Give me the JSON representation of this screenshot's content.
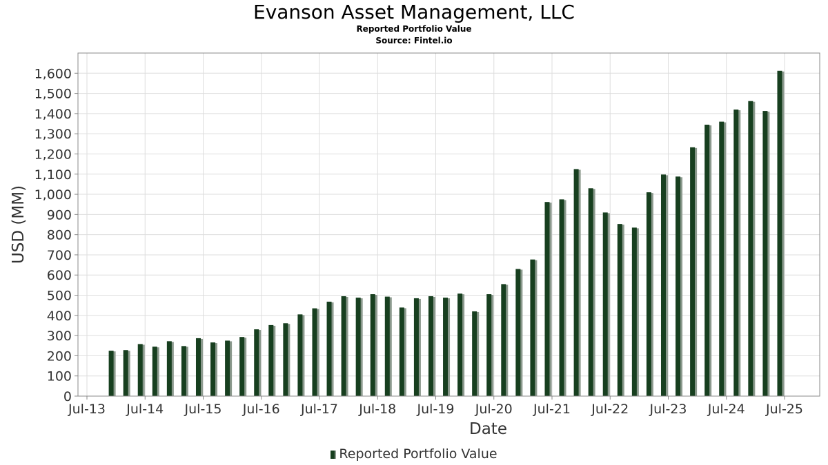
{
  "chart_data": {
    "type": "bar",
    "title": "Evanson Asset Management, LLC",
    "subtitle": "Reported Portfolio Value",
    "source": "Source: Fintel.io",
    "xlabel": "Date",
    "ylabel": "USD (MM)",
    "ylim": [
      0,
      1700
    ],
    "y_ticks": [
      0,
      100,
      200,
      300,
      400,
      500,
      600,
      700,
      800,
      900,
      1000,
      1100,
      1200,
      1300,
      1400,
      1500,
      1600
    ],
    "y_tick_labels": [
      "0",
      "100",
      "200",
      "300",
      "400",
      "500",
      "600",
      "700",
      "800",
      "900",
      "1,000",
      "1,100",
      "1,200",
      "1,300",
      "1,400",
      "1,500",
      "1,600"
    ],
    "x_ticks": [
      "2013-07",
      "2014-07",
      "2015-07",
      "2016-07",
      "2017-07",
      "2018-07",
      "2019-07",
      "2020-07",
      "2021-07",
      "2022-07",
      "2023-07",
      "2024-07",
      "2025-07"
    ],
    "x_tick_labels": [
      "Jul-13",
      "Jul-14",
      "Jul-15",
      "Jul-16",
      "Jul-17",
      "Jul-18",
      "Jul-19",
      "Jul-20",
      "Jul-21",
      "Jul-22",
      "Jul-23",
      "Jul-24",
      "Jul-25"
    ],
    "grid": true,
    "legend_position": "bottom",
    "colors": {
      "bar": "#173f1f",
      "shadow": "#8c9a8e",
      "grid": "#dddddd",
      "axis": "#888888",
      "text": "#333333"
    },
    "series": [
      {
        "name": "Reported Portfolio Value",
        "x": [
          "2013-12",
          "2014-03",
          "2014-06",
          "2014-09",
          "2014-12",
          "2015-03",
          "2015-06",
          "2015-09",
          "2015-12",
          "2016-03",
          "2016-06",
          "2016-09",
          "2016-12",
          "2017-03",
          "2017-06",
          "2017-09",
          "2017-12",
          "2018-03",
          "2018-06",
          "2018-09",
          "2018-12",
          "2019-03",
          "2019-06",
          "2019-09",
          "2019-12",
          "2020-03",
          "2020-06",
          "2020-09",
          "2020-12",
          "2021-03",
          "2021-06",
          "2021-09",
          "2021-12",
          "2022-03",
          "2022-06",
          "2022-09",
          "2022-12",
          "2023-03",
          "2023-06",
          "2023-09",
          "2023-12",
          "2024-03",
          "2024-06",
          "2024-09",
          "2024-12",
          "2025-03",
          "2025-06"
        ],
        "values": [
          225,
          228,
          258,
          245,
          272,
          248,
          287,
          266,
          275,
          293,
          331,
          352,
          361,
          405,
          435,
          468,
          495,
          488,
          505,
          493,
          439,
          485,
          495,
          488,
          508,
          420,
          505,
          555,
          630,
          677,
          962,
          975,
          1125,
          1030,
          910,
          853,
          835,
          1010,
          1098,
          1088,
          1233,
          1345,
          1360,
          1420,
          1462,
          1413,
          1612
        ]
      }
    ]
  }
}
